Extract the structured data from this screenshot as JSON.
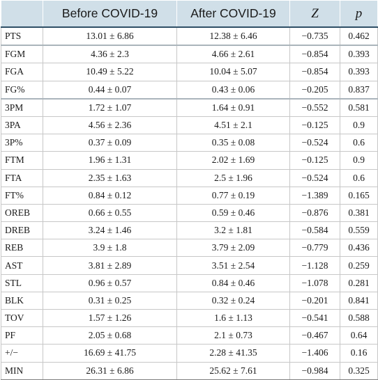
{
  "table": {
    "headers": [
      "",
      "Before COVID-19",
      "After COVID-19",
      "Z",
      "p"
    ],
    "rows": [
      {
        "stat": "PTS",
        "before": "13.01 ± 6.86",
        "after": "12.38 ± 6.46",
        "z": "−0.735",
        "p": "0.462"
      },
      {
        "stat": "FGM",
        "before": "4.36 ± 2.3",
        "after": "4.66 ± 2.61",
        "z": "−0.854",
        "p": "0.393"
      },
      {
        "stat": "FGA",
        "before": "10.49 ± 5.22",
        "after": "10.04 ± 5.07",
        "z": "−0.854",
        "p": "0.393"
      },
      {
        "stat": "FG%",
        "before": "0.44 ± 0.07",
        "after": "0.43 ± 0.06",
        "z": "−0.205",
        "p": "0.837"
      },
      {
        "stat": "3PM",
        "before": "1.72 ± 1.07",
        "after": "1.64 ± 0.91",
        "z": "−0.552",
        "p": "0.581"
      },
      {
        "stat": "3PA",
        "before": "4.56 ± 2.36",
        "after": "4.51 ± 2.1",
        "z": "−0.125",
        "p": "0.9"
      },
      {
        "stat": "3P%",
        "before": "0.37 ± 0.09",
        "after": "0.35 ± 0.08",
        "z": "−0.524",
        "p": "0.6"
      },
      {
        "stat": "FTM",
        "before": "1.96 ± 1.31",
        "after": "2.02 ± 1.69",
        "z": "−0.125",
        "p": "0.9"
      },
      {
        "stat": "FTA",
        "before": "2.35 ± 1.63",
        "after": "2.5 ± 1.96",
        "z": "−0.524",
        "p": "0.6"
      },
      {
        "stat": "FT%",
        "before": "0.84 ± 0.12",
        "after": "0.77 ± 0.19",
        "z": "−1.389",
        "p": "0.165"
      },
      {
        "stat": "OREB",
        "before": "0.66 ± 0.55",
        "after": "0.59 ± 0.46",
        "z": "−0.876",
        "p": "0.381"
      },
      {
        "stat": "DREB",
        "before": "3.24 ± 1.46",
        "after": "3.2 ± 1.81",
        "z": "−0.584",
        "p": "0.559"
      },
      {
        "stat": "REB",
        "before": "3.9 ± 1.8",
        "after": "3.79 ± 2.09",
        "z": "−0.779",
        "p": "0.436"
      },
      {
        "stat": "AST",
        "before": "3.81 ± 2.89",
        "after": "3.51 ± 2.54",
        "z": "−1.128",
        "p": "0.259"
      },
      {
        "stat": "STL",
        "before": "0.96 ± 0.57",
        "after": "0.84 ± 0.46",
        "z": "−1.078",
        "p": "0.281"
      },
      {
        "stat": "BLK",
        "before": "0.31 ± 0.25",
        "after": "0.32 ± 0.24",
        "z": "−0.201",
        "p": "0.841"
      },
      {
        "stat": "TOV",
        "before": "1.57 ± 1.26",
        "after": "1.6 ± 1.13",
        "z": "−0.541",
        "p": "0.588"
      },
      {
        "stat": "PF",
        "before": "2.05 ± 0.68",
        "after": "2.1 ± 0.73",
        "z": "−0.467",
        "p": "0.64"
      },
      {
        "stat": "+/−",
        "before": "16.69 ± 41.75",
        "after": "2.28 ± 41.35",
        "z": "−1.406",
        "p": "0.16"
      },
      {
        "stat": "MIN",
        "before": "26.31 ± 6.86",
        "after": "25.62 ± 7.61",
        "z": "−0.984",
        "p": "0.325"
      }
    ]
  }
}
